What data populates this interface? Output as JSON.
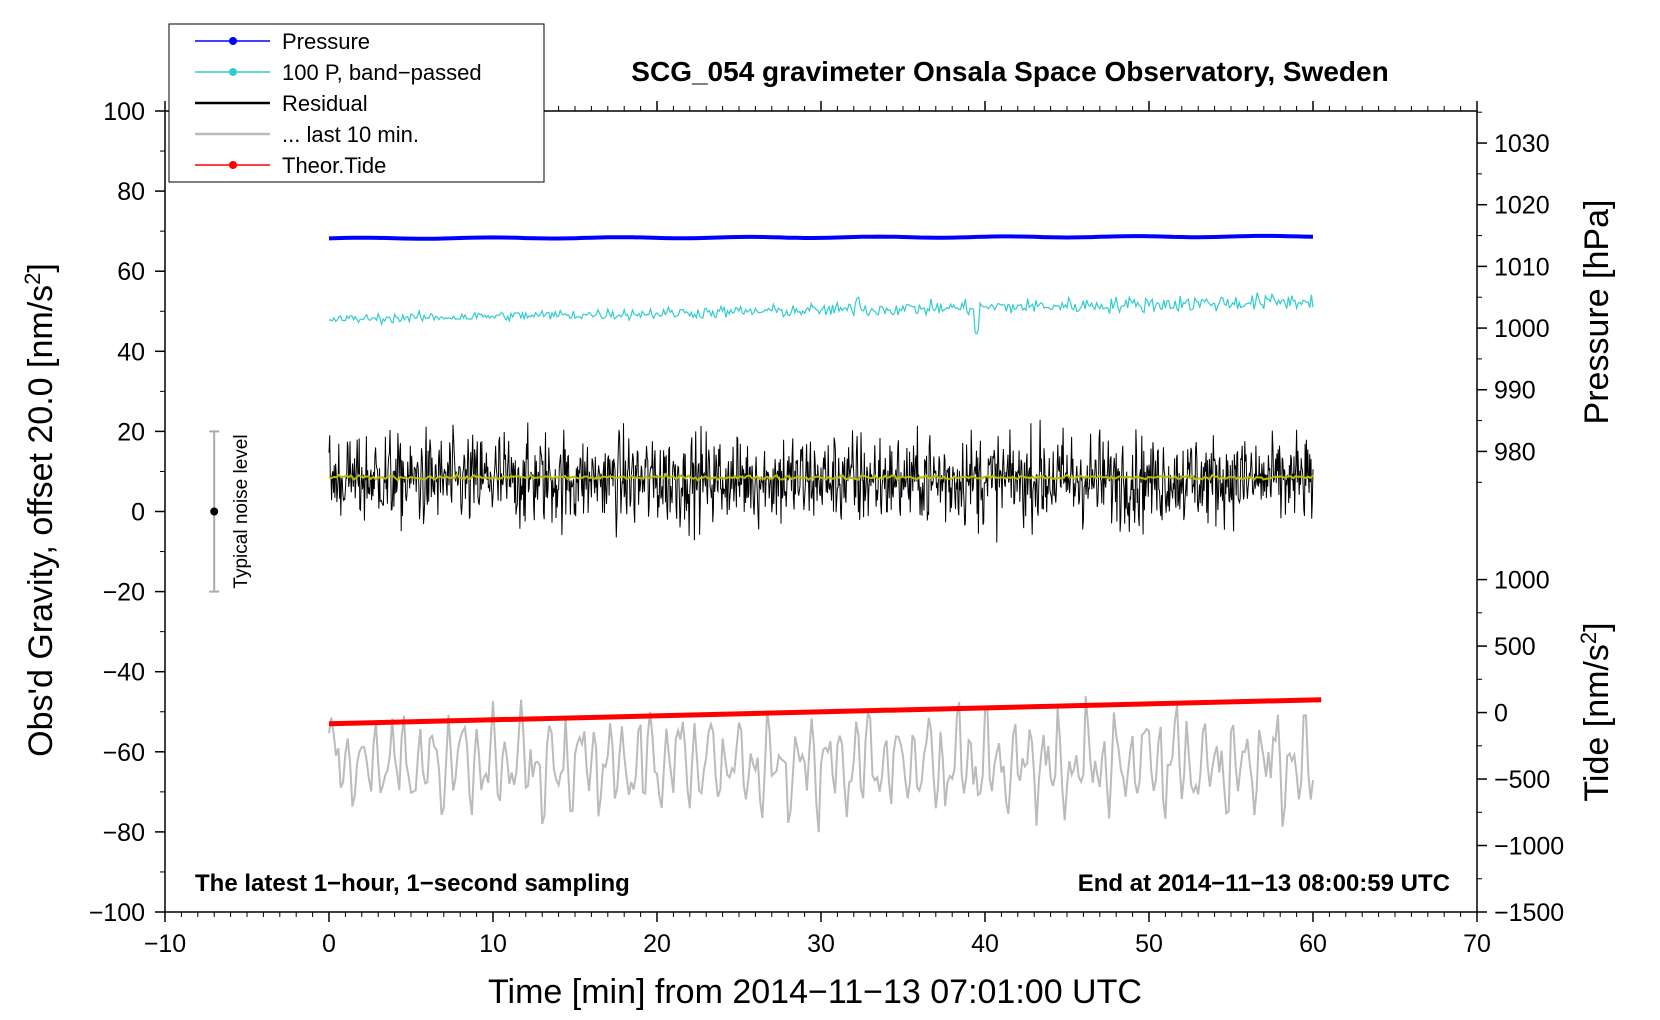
{
  "chart_data": {
    "type": "line",
    "title": "SCG_054 gravimeter Onsala Space Observatory, Sweden",
    "xlabel": "Time [min] from 2014−11−13 07:01:00 UTC",
    "ylabel_left": "Obs'd Gravity, offset 20.0 [nm/s",
    "ylabel_left_sup": "2",
    "ylabel_left_end": "]",
    "ylabel_right_pressure": "Pressure [hPa]",
    "ylabel_right_tide": "Tide [nm/s",
    "ylabel_right_tide_sup": "2",
    "ylabel_right_tide_end": "]",
    "xlim": [
      -10,
      70
    ],
    "ylim_left": [
      -100,
      100
    ],
    "x_ticks": [
      -10,
      0,
      10,
      20,
      30,
      40,
      50,
      60,
      70
    ],
    "x_tick_labels": [
      "−10",
      "0",
      "10",
      "20",
      "30",
      "40",
      "50",
      "60",
      "70"
    ],
    "y_ticks_left": [
      100,
      80,
      60,
      40,
      20,
      0,
      -20,
      -40,
      -60,
      -80,
      -100
    ],
    "y_tick_labels_left": [
      "100",
      "80",
      "60",
      "40",
      "20",
      "0",
      "−20",
      "−40",
      "−60",
      "−80",
      "−100"
    ],
    "pressure_ticks": [
      1030,
      1020,
      1010,
      1000,
      990,
      980
    ],
    "pressure_tick_labels": [
      "1030",
      "1020",
      "1010",
      "1000",
      "990",
      "980"
    ],
    "pressure_axis_map": {
      "value_a": 1030,
      "gravity_a": 92,
      "value_b": 980,
      "gravity_b": 15
    },
    "tide_ticks": [
      1000,
      500,
      0,
      -500,
      -1000,
      -1500
    ],
    "tide_tick_labels": [
      "1000",
      "500",
      "0",
      "−500",
      "−1000",
      "−1500"
    ],
    "tide_axis_map": {
      "value_a": 1000,
      "gravity_a": -17,
      "value_b": -1500,
      "gravity_b": -100
    },
    "annotation_left": "The latest 1−hour, 1−second sampling",
    "annotation_right": "End at 2014−11−13 08:00:59 UTC",
    "noise_label": "Typical noise level",
    "noise_bar": {
      "x": -7,
      "center": 0,
      "low": -20,
      "high": 20
    },
    "legend": [
      {
        "label": "Pressure",
        "color": "#0000ff",
        "marker": true
      },
      {
        "label": "100 P, band−passed",
        "color": "#33cccc",
        "marker": true
      },
      {
        "label": "Residual",
        "color": "#000000",
        "marker": false
      },
      {
        "label": "... last 10 min.",
        "color": "#bbbbbb",
        "marker": false
      },
      {
        "label": "Theor.Tide",
        "color": "#ff0000",
        "marker": true
      }
    ],
    "series": [
      {
        "name": "Pressure",
        "color": "#0000ff",
        "x_range": [
          0,
          60
        ],
        "start": 68.2,
        "end": 68.7,
        "noise": 0.15
      },
      {
        "name": "100 P, band−passed",
        "color": "#33cccc",
        "x_range": [
          0,
          60
        ],
        "start": 48,
        "end": 52.5,
        "noise": 1.3
      },
      {
        "name": "Residual",
        "color": "#000000",
        "x_range": [
          0,
          60
        ],
        "mean": 8,
        "amplitude": 13
      },
      {
        "name": "Residual smoothed",
        "color": "#bbbb00",
        "x_range": [
          0,
          60
        ],
        "mean": 8.5,
        "amplitude": 0.8
      },
      {
        "name": "... last 10 min.",
        "color": "#bbbbbb",
        "x_range": [
          0,
          60
        ],
        "mean": -63,
        "amplitude": 13
      },
      {
        "name": "Theor.Tide",
        "color": "#ff0000",
        "x_range": [
          0,
          60.5
        ],
        "start": -53,
        "end": -47
      }
    ]
  }
}
